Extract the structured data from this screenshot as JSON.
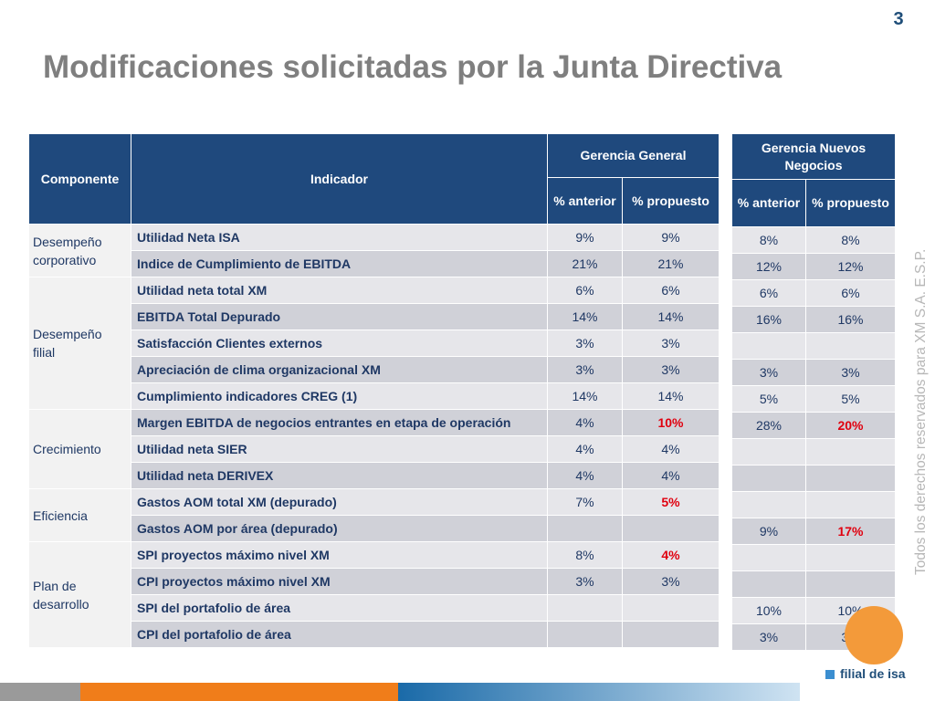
{
  "page": {
    "number": "3",
    "title": "Modificaciones solicitadas por la Junta Directiva"
  },
  "main_table": {
    "header": {
      "componente": "Componente",
      "indicador": "Indicador",
      "group": "Gerencia General",
      "col_anterior": "% anterior",
      "col_propuesto": "% propuesto"
    },
    "components": [
      "Desempeño corporativo",
      "Desempeño filial",
      "Crecimiento",
      "Eficiencia",
      "Plan de desarrollo"
    ],
    "rows": [
      {
        "indicador": "Utilidad Neta ISA",
        "anterior": "9%",
        "propuesto": "9%"
      },
      {
        "indicador": "Indice de Cumplimiento de EBITDA",
        "anterior": "21%",
        "propuesto": "21%"
      },
      {
        "indicador": "Utilidad neta total XM",
        "anterior": "6%",
        "propuesto": "6%"
      },
      {
        "indicador": "EBITDA Total Depurado",
        "anterior": "14%",
        "propuesto": "14%"
      },
      {
        "indicador": "Satisfacción Clientes externos",
        "anterior": "3%",
        "propuesto": "3%"
      },
      {
        "indicador": "Apreciación de clima organizacional XM",
        "anterior": "3%",
        "propuesto": "3%"
      },
      {
        "indicador": "Cumplimiento indicadores CREG (1)",
        "anterior": "14%",
        "propuesto": "14%"
      },
      {
        "indicador": "Margen EBITDA de negocios entrantes en  etapa de operación",
        "anterior": "4%",
        "propuesto": "10%"
      },
      {
        "indicador": "Utilidad neta SIER",
        "anterior": "4%",
        "propuesto": "4%"
      },
      {
        "indicador": "Utilidad neta DERIVEX",
        "anterior": "4%",
        "propuesto": "4%"
      },
      {
        "indicador": "Gastos AOM total  XM (depurado)",
        "anterior": "7%",
        "propuesto": "5%"
      },
      {
        "indicador": "Gastos AOM por área (depurado)",
        "anterior": "",
        "propuesto": ""
      },
      {
        "indicador": "SPI proyectos máximo nivel XM",
        "anterior": "8%",
        "propuesto": "4%"
      },
      {
        "indicador": "CPI proyectos máximo nivel XM",
        "anterior": "3%",
        "propuesto": "3%"
      },
      {
        "indicador": "SPI del portafolio de área",
        "anterior": "",
        "propuesto": ""
      },
      {
        "indicador": "CPI del portafolio de área",
        "anterior": "",
        "propuesto": ""
      }
    ]
  },
  "side_table": {
    "header": {
      "group": "Gerencia Nuevos Negocios",
      "col_anterior": "% anterior",
      "col_propuesto": "% propuesto"
    },
    "rows": [
      {
        "anterior": "8%",
        "propuesto": "8%"
      },
      {
        "anterior": "12%",
        "propuesto": "12%"
      },
      {
        "anterior": "6%",
        "propuesto": "6%"
      },
      {
        "anterior": "16%",
        "propuesto": "16%"
      },
      {
        "anterior": "",
        "propuesto": ""
      },
      {
        "anterior": "3%",
        "propuesto": "3%"
      },
      {
        "anterior": "5%",
        "propuesto": "5%"
      },
      {
        "anterior": "28%",
        "propuesto": "20%"
      },
      {
        "anterior": "",
        "propuesto": ""
      },
      {
        "anterior": "",
        "propuesto": ""
      },
      {
        "anterior": "",
        "propuesto": ""
      },
      {
        "anterior": "9%",
        "propuesto": "17%"
      },
      {
        "anterior": "",
        "propuesto": ""
      },
      {
        "anterior": "",
        "propuesto": ""
      },
      {
        "anterior": "10%",
        "propuesto": "10%"
      },
      {
        "anterior": "3%",
        "propuesto": "3%"
      }
    ]
  },
  "watermark": "Todos los derechos reservados para XM S.A. E.S.P.",
  "logo": {
    "text": "filial de isa"
  },
  "colors": {
    "header_blue": "#1f497d",
    "highlight_red": "#e0000f",
    "title_gray": "#7f7f7f",
    "footer_orange": "#f07d1a"
  }
}
